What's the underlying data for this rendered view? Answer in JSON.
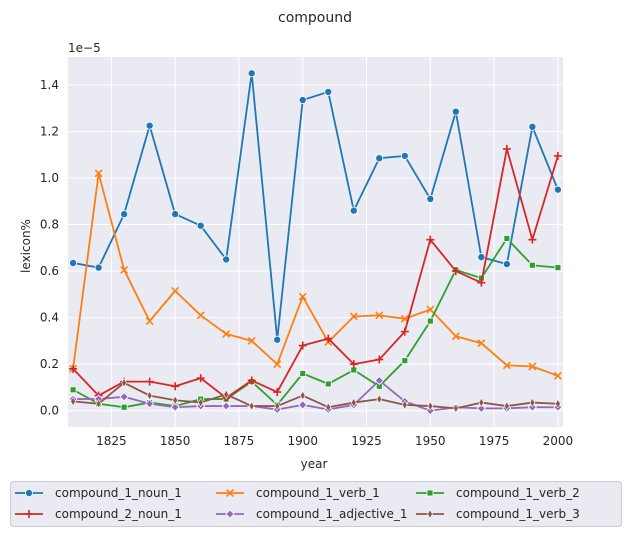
{
  "chart_data": {
    "type": "line",
    "title": "compound",
    "xlabel": "year",
    "ylabel": "lexicon%",
    "y_scale_label": "1e−5",
    "xlim": [
      1808,
      2002
    ],
    "ylim": [
      -0.07,
      1.52
    ],
    "x_ticks": [
      1825,
      1850,
      1875,
      1900,
      1925,
      1950,
      1975,
      2000
    ],
    "x_tick_labels": [
      "1825",
      "1850",
      "1875",
      "1900",
      "1925",
      "1950",
      "1975",
      "2000"
    ],
    "y_ticks": [
      0.0,
      0.2,
      0.4,
      0.6,
      0.8,
      1.0,
      1.2,
      1.4
    ],
    "y_tick_labels": [
      "0.0",
      "0.2",
      "0.4",
      "0.6",
      "0.8",
      "1.0",
      "1.2",
      "1.4"
    ],
    "grid": true,
    "legend_position": "bottom",
    "x": [
      1810,
      1820,
      1830,
      1840,
      1850,
      1860,
      1870,
      1880,
      1890,
      1900,
      1910,
      1920,
      1930,
      1940,
      1950,
      1960,
      1970,
      1980,
      1990,
      2000
    ],
    "series": [
      {
        "name": "compound_1_noun_1",
        "color": "#1f77b4",
        "marker": "circle",
        "values": [
          0.635,
          0.615,
          0.845,
          1.225,
          0.845,
          0.795,
          0.65,
          1.45,
          0.305,
          1.335,
          1.37,
          0.86,
          1.085,
          1.095,
          0.91,
          1.285,
          0.66,
          0.63,
          1.22,
          0.95
        ]
      },
      {
        "name": "compound_1_verb_1",
        "color": "#ff7f0e",
        "marker": "x",
        "values": [
          0.18,
          1.02,
          0.605,
          0.385,
          0.515,
          0.41,
          0.33,
          0.3,
          0.2,
          0.49,
          0.295,
          0.405,
          0.41,
          0.395,
          0.435,
          0.32,
          0.29,
          0.195,
          0.19,
          0.15
        ]
      },
      {
        "name": "compound_1_verb_2",
        "color": "#2ca02c",
        "marker": "square",
        "values": [
          0.09,
          0.03,
          0.015,
          0.035,
          0.02,
          0.05,
          0.05,
          0.125,
          0.025,
          0.16,
          0.115,
          0.175,
          0.105,
          0.215,
          0.385,
          0.605,
          0.57,
          0.74,
          0.625,
          0.615
        ]
      },
      {
        "name": "compound_2_noun_1",
        "color": "#d62728",
        "marker": "plus",
        "values": [
          0.18,
          0.065,
          0.125,
          0.125,
          0.105,
          0.14,
          0.055,
          0.13,
          0.08,
          0.28,
          0.31,
          0.2,
          0.22,
          0.34,
          0.735,
          0.6,
          0.55,
          1.125,
          0.735,
          1.095
        ]
      },
      {
        "name": "compound_1_adjective_1",
        "color": "#9467bd",
        "marker": "diamond",
        "values": [
          0.05,
          0.05,
          0.06,
          0.03,
          0.015,
          0.02,
          0.02,
          0.02,
          0.005,
          0.025,
          0.005,
          0.025,
          0.13,
          0.04,
          0.0,
          0.015,
          0.01,
          0.01,
          0.015,
          0.015
        ]
      },
      {
        "name": "compound_1_verb_3",
        "color": "#8c564b",
        "marker": "thin_diamond",
        "values": [
          0.04,
          0.03,
          0.12,
          0.065,
          0.045,
          0.035,
          0.07,
          0.02,
          0.02,
          0.065,
          0.015,
          0.035,
          0.05,
          0.025,
          0.02,
          0.01,
          0.035,
          0.02,
          0.035,
          0.03
        ]
      }
    ]
  }
}
